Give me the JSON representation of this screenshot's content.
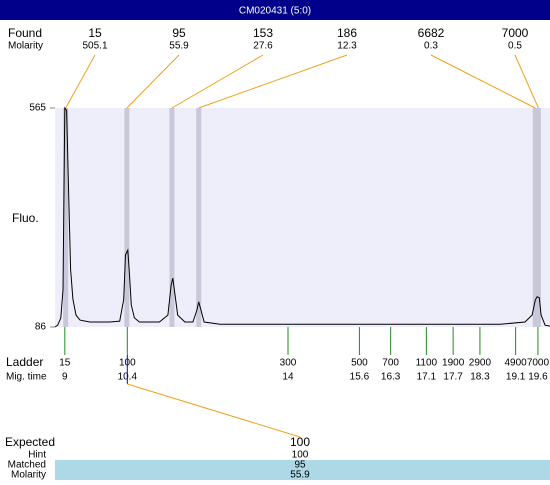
{
  "title": "CM020431 (5:0)",
  "chart_data": {
    "type": "line",
    "y_label": "Fluo.",
    "color": "#000000",
    "x": [
      8.78,
      8.84,
      8.91,
      8.96,
      9.0,
      9.04,
      9.09,
      9.13,
      9.18,
      9.25,
      9.34,
      9.56,
      10.01,
      10.23,
      10.32,
      10.36,
      10.41,
      10.45,
      10.49,
      10.56,
      10.67,
      11.12,
      11.31,
      11.38,
      11.42,
      11.47,
      11.53,
      11.69,
      11.87,
      11.96,
      12.0,
      12.05,
      12.12,
      12.48,
      14.27,
      16.51,
      18.75,
      19.31,
      19.47,
      19.54,
      19.58,
      19.63,
      19.67,
      19.76,
      19.87
    ],
    "values": [
      86,
      90,
      106,
      167,
      565,
      560,
      365,
      212,
      147,
      112,
      101,
      97,
      97,
      99,
      146,
      244,
      254,
      200,
      134,
      106,
      97,
      97,
      112,
      177,
      193,
      155,
      112,
      97,
      97,
      123,
      141,
      123,
      97,
      92,
      92,
      92,
      92,
      97,
      112,
      145,
      152,
      150,
      112,
      90,
      88
    ],
    "xlim": [
      8.78,
      19.87
    ],
    "ylim": [
      86,
      565
    ],
    "yticks": [
      86,
      565
    ],
    "found": {
      "label": "Found",
      "sublabel": "Molarity",
      "sizes": [
        15,
        95,
        153,
        186,
        6682,
        7000
      ],
      "molarity": [
        505.1,
        55.9,
        27.6,
        12.3,
        0.3,
        0.5
      ],
      "mig_times": [
        9.02,
        10.39,
        11.4,
        12.0,
        19.54,
        19.61
      ]
    },
    "ladder": {
      "label": "Ladder",
      "sublabel": "Mig. time",
      "sizes": [
        15,
        100,
        300,
        500,
        700,
        1100,
        1900,
        2900,
        4900,
        7000
      ],
      "mig_times": [
        9,
        10.4,
        14,
        15.6,
        16.3,
        17.1,
        17.7,
        18.3,
        19.1,
        19.6
      ]
    }
  },
  "expected": {
    "label": "Expected",
    "value": 100,
    "rows": [
      {
        "label": "Hint",
        "value": 100
      },
      {
        "label": "Matched",
        "value": 95
      },
      {
        "label": "Molarity",
        "value": 55.9
      }
    ]
  }
}
